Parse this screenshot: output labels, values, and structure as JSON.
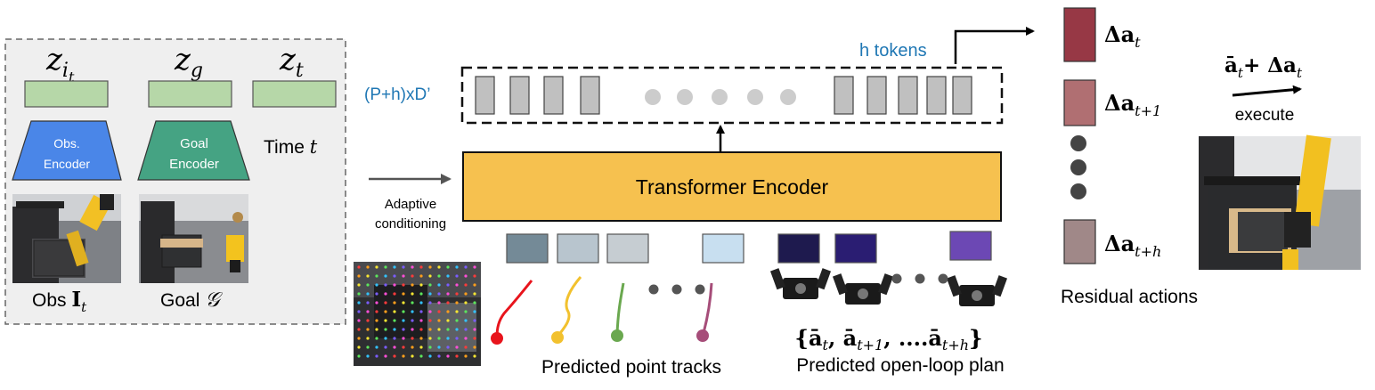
{
  "left_panel": {
    "z_obs_base": "z",
    "z_obs_sub": "i",
    "z_obs_subsub": "t",
    "z_goal_base": "z",
    "z_goal_sub": "g",
    "z_time_base": "z",
    "z_time_sub": "t",
    "obs_encoder_line1": "Obs.",
    "obs_encoder_line2": "Encoder",
    "goal_encoder_line1": "Goal",
    "goal_encoder_line2": "Encoder",
    "time_label": "Time",
    "time_var": "t",
    "obs_caption": "Obs",
    "obs_caption_math": "I",
    "obs_caption_sub": "t",
    "goal_caption": "Goal",
    "goal_caption_math": "𝒢"
  },
  "middle": {
    "adaptive_line1": "Adaptive",
    "adaptive_line2": "conditioning",
    "output_dim_label": "(P+h)xD’",
    "h_tokens_label": "h tokens",
    "transformer_label": "Transformer Encoder",
    "point_tracks_label": "Predicted point tracks",
    "open_loop_label": "Predicted open-loop plan",
    "plan_set_math": "{ā_t, ā_{t+1}, ....ā_{t+h}}"
  },
  "right_panel": {
    "delta_a_t": "Δa",
    "delta_a_t_sub": "t",
    "delta_a_t1": "Δa",
    "delta_a_t1_sub": "t+1",
    "delta_a_th": "Δa",
    "delta_a_th_sub": "t+h",
    "residual_label": "Residual actions",
    "sum_math": "ā",
    "sum_sub": "t",
    "sum_plus": "+ Δa",
    "sum_plus_sub": "t",
    "execute_label": "execute"
  },
  "colors": {
    "latent_green": "#b6d7a8",
    "obs_encoder_blue": "#4a86e8",
    "goal_encoder_green": "#45a383",
    "transformer_yellow": "#f6c14f",
    "token_gray": "#c0c0c0",
    "accent_blue": "#1f77b4",
    "delta_red_1": "#973845",
    "delta_red_2": "#b06f72",
    "delta_red_3": "#a08888"
  }
}
